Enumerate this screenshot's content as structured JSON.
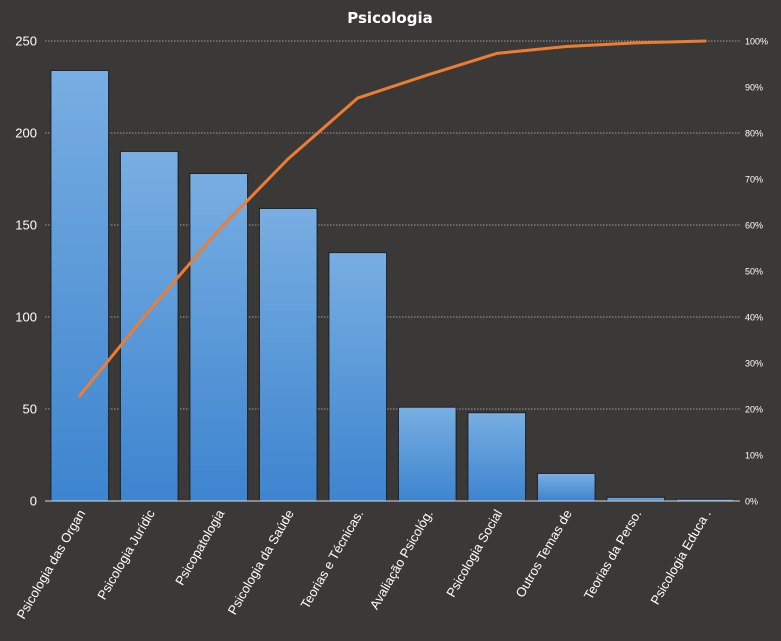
{
  "chart_data": {
    "type": "bar",
    "title": "Psicologia",
    "categories": [
      "Psicologia das Organ",
      "Psicologia Jurídic",
      "Psicopatologia",
      "Psicologia da Saúde",
      "Teorias e Técnicas.",
      "Avaliação Psicológ.",
      "Psicologia Social",
      "Outros Temas de",
      "Teorias da Perso.",
      "Psicologia Educa ."
    ],
    "series": [
      {
        "type": "bar",
        "values": [
          234,
          190,
          178,
          159,
          135,
          51,
          48,
          15,
          2,
          1
        ]
      },
      {
        "type": "line",
        "axis": "secondary",
        "values": [
          0.229,
          0.414,
          0.589,
          0.744,
          0.876,
          0.926,
          0.973,
          0.988,
          0.996,
          1.0
        ]
      }
    ],
    "ylim": [
      0,
      250
    ],
    "yticks": [
      "0",
      "50",
      "100",
      "150",
      "200",
      "250"
    ],
    "y2lim": [
      0,
      1
    ],
    "y2ticks": [
      "0%",
      "10%",
      "20%",
      "30%",
      "40%",
      "50%",
      "60%",
      "70%",
      "80%",
      "90%",
      "100%"
    ],
    "grid": true,
    "colors": {
      "bar": "#4a90d9",
      "bar_light": "#78aee2",
      "line": "#ed7d31",
      "background": "#3b3838",
      "text": "#ffffff"
    }
  }
}
